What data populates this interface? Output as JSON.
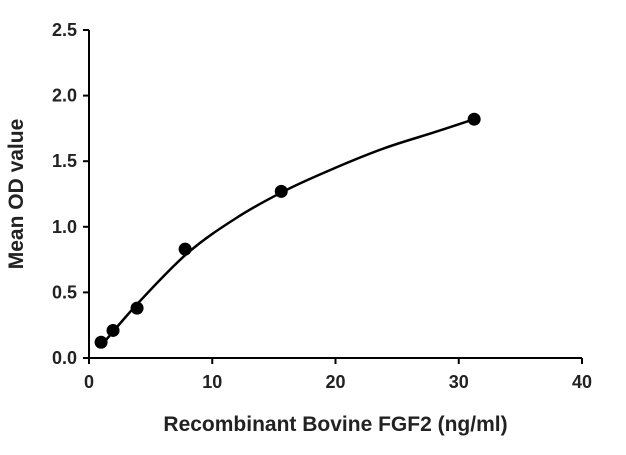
{
  "chart_data": {
    "type": "scatter",
    "title": "",
    "xlabel": "Recombinant Bovine FGF2 (ng/ml)",
    "ylabel": "Mean OD value",
    "xlim": [
      0,
      40
    ],
    "ylim": [
      0,
      2.5
    ],
    "x_ticks": [
      0,
      10,
      20,
      30,
      40
    ],
    "y_ticks": [
      0.0,
      0.5,
      1.0,
      1.5,
      2.0,
      2.5
    ],
    "x_tick_labels": [
      "0",
      "10",
      "20",
      "30",
      "40"
    ],
    "y_tick_labels": [
      "0.0",
      "0.5",
      "1.0",
      "1.5",
      "2.0",
      "2.5"
    ],
    "grid": false,
    "legend": "none",
    "marker_color": "#000000",
    "series": [
      {
        "x": [
          0.98,
          1.95,
          3.9,
          7.8,
          15.6,
          31.25
        ],
        "y": [
          0.12,
          0.21,
          0.38,
          0.83,
          1.27,
          1.82
        ]
      }
    ],
    "fit_curve": {
      "x_range": [
        1.0,
        31.25
      ],
      "points": [
        [
          1.0,
          0.095
        ],
        [
          4.0,
          0.42
        ],
        [
          8.0,
          0.8
        ],
        [
          12.0,
          1.07
        ],
        [
          16.0,
          1.28
        ],
        [
          20.0,
          1.45
        ],
        [
          24.0,
          1.6
        ],
        [
          28.0,
          1.72
        ],
        [
          31.25,
          1.82
        ]
      ]
    }
  }
}
